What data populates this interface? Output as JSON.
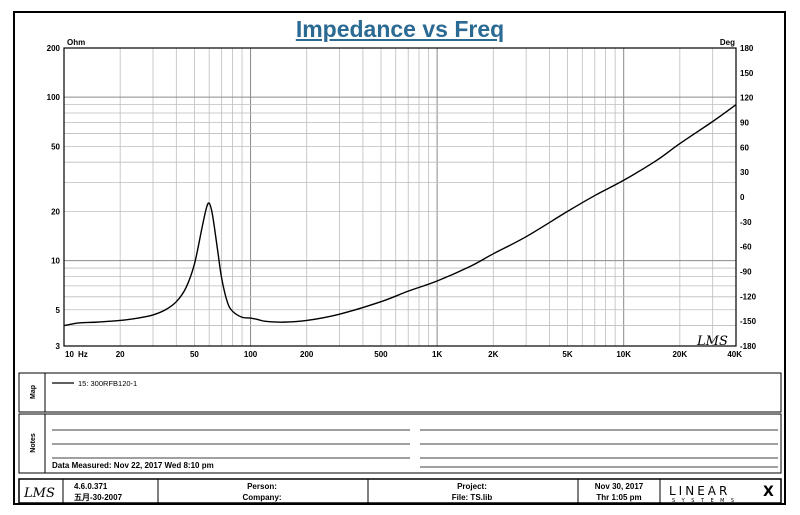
{
  "chart_data": {
    "type": "line",
    "title": "Impedance vs Freq",
    "x_unit_label": "Hz",
    "y_left_unit": "Ohm",
    "y_right_unit": "Deg",
    "x_scale": "log",
    "y_scale": "log",
    "xlim": [
      10,
      40000
    ],
    "ylim": [
      3,
      200
    ],
    "y_right_lim": [
      -180,
      180
    ],
    "grid": true,
    "x_ticks": [
      {
        "value": 10,
        "label": "10"
      },
      {
        "value": 20,
        "label": "20"
      },
      {
        "value": 50,
        "label": "50"
      },
      {
        "value": 100,
        "label": "100"
      },
      {
        "value": 200,
        "label": "200"
      },
      {
        "value": 500,
        "label": "500"
      },
      {
        "value": 1000,
        "label": "1K"
      },
      {
        "value": 2000,
        "label": "2K"
      },
      {
        "value": 5000,
        "label": "5K"
      },
      {
        "value": 10000,
        "label": "10K"
      },
      {
        "value": 20000,
        "label": "20K"
      },
      {
        "value": 40000,
        "label": "40K"
      }
    ],
    "y_ticks": [
      {
        "value": 200,
        "label": "200"
      },
      {
        "value": 100,
        "label": "100"
      },
      {
        "value": 50,
        "label": "50"
      },
      {
        "value": 20,
        "label": "20"
      },
      {
        "value": 10,
        "label": "10"
      },
      {
        "value": 5,
        "label": "5"
      },
      {
        "value": 3,
        "label": "3"
      }
    ],
    "y_right_ticks": [
      "180",
      "150",
      "120",
      "90",
      "60",
      "30",
      "0",
      "-30",
      "-60",
      "-90",
      "-120",
      "-150",
      "-180"
    ],
    "series": [
      {
        "name": "15: 300RFB120-1",
        "color": "#000000",
        "x": [
          10,
          12,
          15,
          20,
          25,
          30,
          35,
          40,
          45,
          50,
          55,
          58,
          60,
          62,
          64,
          67,
          70,
          75,
          80,
          90,
          100,
          110,
          120,
          150,
          200,
          300,
          500,
          700,
          1000,
          1500,
          2000,
          3000,
          5000,
          7000,
          10000,
          15000,
          20000,
          30000,
          40000
        ],
        "y": [
          4.0,
          4.15,
          4.2,
          4.3,
          4.45,
          4.65,
          5.0,
          5.6,
          6.8,
          9.5,
          16,
          21,
          22.5,
          20,
          16,
          11,
          7.8,
          5.6,
          4.9,
          4.5,
          4.45,
          4.35,
          4.25,
          4.2,
          4.3,
          4.7,
          5.6,
          6.5,
          7.5,
          9.2,
          11,
          14,
          20,
          25,
          31,
          41,
          52,
          71,
          90
        ]
      }
    ]
  },
  "map": {
    "side_label": "Map",
    "legend_text": "15: 300RFB120-1"
  },
  "notes": {
    "side_label": "Notes",
    "data_measured": "Data Measured: Nov 22, 2017  Wed  8:10 pm"
  },
  "footer": {
    "logo_text": "LMS",
    "version": "4.6.0.371",
    "version_date": "五月-30-2007",
    "person_label": "Person:",
    "company_label": "Company:",
    "project_label": "Project:",
    "file_label": "File: TS.lib",
    "date": "Nov 30, 2017",
    "time": "Thr  1:05 pm",
    "brand_top": "LINEAR",
    "brand_x": "X",
    "brand_bottom": "SYSTEMS"
  },
  "watermark": "LMS"
}
